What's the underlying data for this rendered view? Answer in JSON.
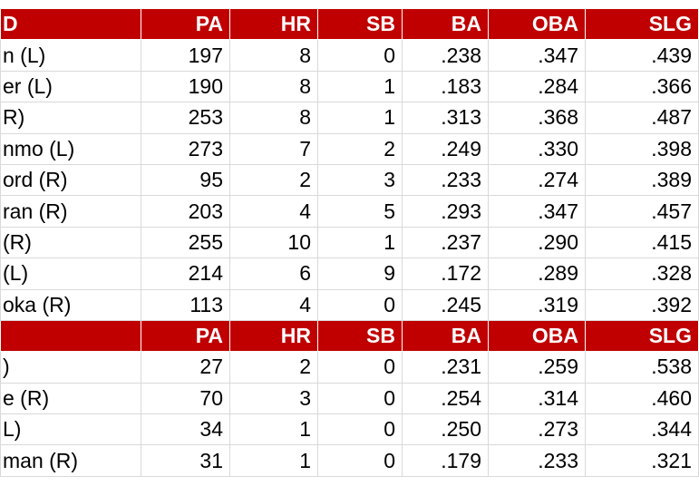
{
  "table": {
    "sections": [
      {
        "header": [
          "D",
          "PA",
          "HR",
          "SB",
          "BA",
          "OBA",
          "SLG"
        ],
        "rows": [
          [
            "n (L)",
            "197",
            "8",
            "0",
            ".238",
            ".347",
            ".439"
          ],
          [
            "er (L)",
            "190",
            "8",
            "1",
            ".183",
            ".284",
            ".366"
          ],
          [
            "R)",
            "253",
            "8",
            "1",
            ".313",
            ".368",
            ".487"
          ],
          [
            "nmo (L)",
            "273",
            "7",
            "2",
            ".249",
            ".330",
            ".398"
          ],
          [
            "ord (R)",
            "95",
            "2",
            "3",
            ".233",
            ".274",
            ".389"
          ],
          [
            "ran (R)",
            "203",
            "4",
            "5",
            ".293",
            ".347",
            ".457"
          ],
          [
            "(R)",
            "255",
            "10",
            "1",
            ".237",
            ".290",
            ".415"
          ],
          [
            "(L)",
            "214",
            "6",
            "9",
            ".172",
            ".289",
            ".328"
          ],
          [
            "oka (R)",
            "113",
            "4",
            "0",
            ".245",
            ".319",
            ".392"
          ]
        ]
      },
      {
        "header": [
          null,
          "PA",
          "HR",
          "SB",
          "BA",
          "OBA",
          "SLG"
        ],
        "rows": [
          [
            ")",
            "27",
            "2",
            "0",
            ".231",
            ".259",
            ".538"
          ],
          [
            "e (R)",
            "70",
            "3",
            "0",
            ".254",
            ".314",
            ".460"
          ],
          [
            "L)",
            "34",
            "1",
            "0",
            ".250",
            ".273",
            ".344"
          ],
          [
            "man (R)",
            "31",
            "1",
            "0",
            ".179",
            ".233",
            ".321"
          ]
        ]
      }
    ]
  }
}
